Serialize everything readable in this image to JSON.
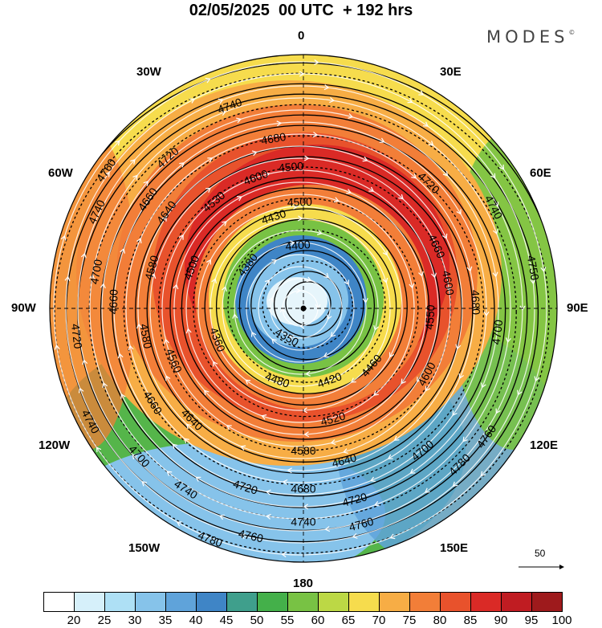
{
  "title": "02/05/2025  00 UTC  + 192 hrs",
  "brand": {
    "name": "MODES",
    "mark": "©"
  },
  "longitude_labels": {
    "north": "0",
    "south": "180",
    "west": "90W",
    "east": "90E",
    "w30": "30W",
    "e30": "30E",
    "w60": "60W",
    "e60": "60E",
    "w120": "120W",
    "e120": "120E",
    "w150": "150W",
    "e150": "150E"
  },
  "vector_scale": {
    "label": "50"
  },
  "colorbar": {
    "levels": [
      20,
      25,
      30,
      35,
      40,
      45,
      50,
      55,
      60,
      65,
      70,
      75,
      80,
      85,
      90,
      95,
      100
    ],
    "colors": [
      "#ffffff",
      "#d6f0fa",
      "#aee0f5",
      "#86c3ea",
      "#5fa3da",
      "#3f85c6",
      "#3f9f8c",
      "#44b04a",
      "#78c244",
      "#bcd845",
      "#f6dc4d",
      "#f7ad45",
      "#f27e38",
      "#e8522c",
      "#da2a26",
      "#c01c22",
      "#9e1a1c"
    ]
  },
  "map": {
    "projection": "north-polar-stereographic",
    "field": "wind speed shading with geopotential height contours and streamlines",
    "contour_labels": [
      {
        "text": "4740",
        "lon": -20,
        "r": 0.85
      },
      {
        "text": "4720",
        "lon": -42,
        "r": 0.8
      },
      {
        "text": "4680",
        "lon": -10,
        "r": 0.68
      },
      {
        "text": "4660",
        "lon": -55,
        "r": 0.75
      },
      {
        "text": "4600",
        "lon": -20,
        "r": 0.55
      },
      {
        "text": "4500",
        "lon": -5,
        "r": 0.56
      },
      {
        "text": "4500",
        "lon": -2,
        "r": 0.42
      },
      {
        "text": "4430",
        "lon": -18,
        "r": 0.38
      },
      {
        "text": "4400",
        "lon": -5,
        "r": 0.25
      },
      {
        "text": "4380",
        "lon": -52,
        "r": 0.28
      },
      {
        "text": "4350",
        "lon": -150,
        "r": 0.13
      },
      {
        "text": "4360",
        "lon": -110,
        "r": 0.36
      },
      {
        "text": "4500",
        "lon": -70,
        "r": 0.47
      },
      {
        "text": "4530",
        "lon": -40,
        "r": 0.55
      },
      {
        "text": "4640",
        "lon": -55,
        "r": 0.66
      },
      {
        "text": "4580",
        "lon": -75,
        "r": 0.62
      },
      {
        "text": "4660",
        "lon": -88,
        "r": 0.75
      },
      {
        "text": "4740",
        "lon": -65,
        "r": 0.9
      },
      {
        "text": "4760",
        "lon": -55,
        "r": 0.95
      },
      {
        "text": "4700",
        "lon": -80,
        "r": 0.83
      },
      {
        "text": "4720",
        "lon": -97,
        "r": 0.9
      },
      {
        "text": "4580",
        "lon": -100,
        "r": 0.63
      },
      {
        "text": "4560",
        "lon": -112,
        "r": 0.55
      },
      {
        "text": "4480",
        "lon": -160,
        "r": 0.3
      },
      {
        "text": "4420",
        "lon": 160,
        "r": 0.3
      },
      {
        "text": "4460",
        "lon": 130,
        "r": 0.35
      },
      {
        "text": "4520",
        "lon": 165,
        "r": 0.45
      },
      {
        "text": "4580",
        "lon": 180,
        "r": 0.56
      },
      {
        "text": "4640",
        "lon": 165,
        "r": 0.62
      },
      {
        "text": "4640",
        "lon": -135,
        "r": 0.62
      },
      {
        "text": "4660",
        "lon": -122,
        "r": 0.7
      },
      {
        "text": "4680",
        "lon": 180,
        "r": 0.71
      },
      {
        "text": "4720",
        "lon": 165,
        "r": 0.78
      },
      {
        "text": "4700",
        "lon": 140,
        "r": 0.73
      },
      {
        "text": "4740",
        "lon": 180,
        "r": 0.84
      },
      {
        "text": "4760",
        "lon": 165,
        "r": 0.88
      },
      {
        "text": "4720",
        "lon": -162,
        "r": 0.74
      },
      {
        "text": "4740",
        "lon": -147,
        "r": 0.85
      },
      {
        "text": "4700",
        "lon": -132,
        "r": 0.87
      },
      {
        "text": "4740",
        "lon": -118,
        "r": 0.95
      },
      {
        "text": "4760",
        "lon": -167,
        "r": 0.92
      },
      {
        "text": "4780",
        "lon": -158,
        "r": 0.98
      },
      {
        "text": "4780",
        "lon": 135,
        "r": 0.87
      },
      {
        "text": "4760",
        "lon": 125,
        "r": 0.88
      },
      {
        "text": "4600",
        "lon": 118,
        "r": 0.55
      },
      {
        "text": "4600",
        "lon": 80,
        "r": 0.58
      },
      {
        "text": "4660",
        "lon": 65,
        "r": 0.58
      },
      {
        "text": "4680",
        "lon": 88,
        "r": 0.68
      },
      {
        "text": "4700",
        "lon": 97,
        "r": 0.77
      },
      {
        "text": "4720",
        "lon": 45,
        "r": 0.7
      },
      {
        "text": "4740",
        "lon": 62,
        "r": 0.85
      },
      {
        "text": "4750",
        "lon": 80,
        "r": 0.92
      },
      {
        "text": "4550",
        "lon": 94,
        "r": 0.5
      }
    ]
  }
}
